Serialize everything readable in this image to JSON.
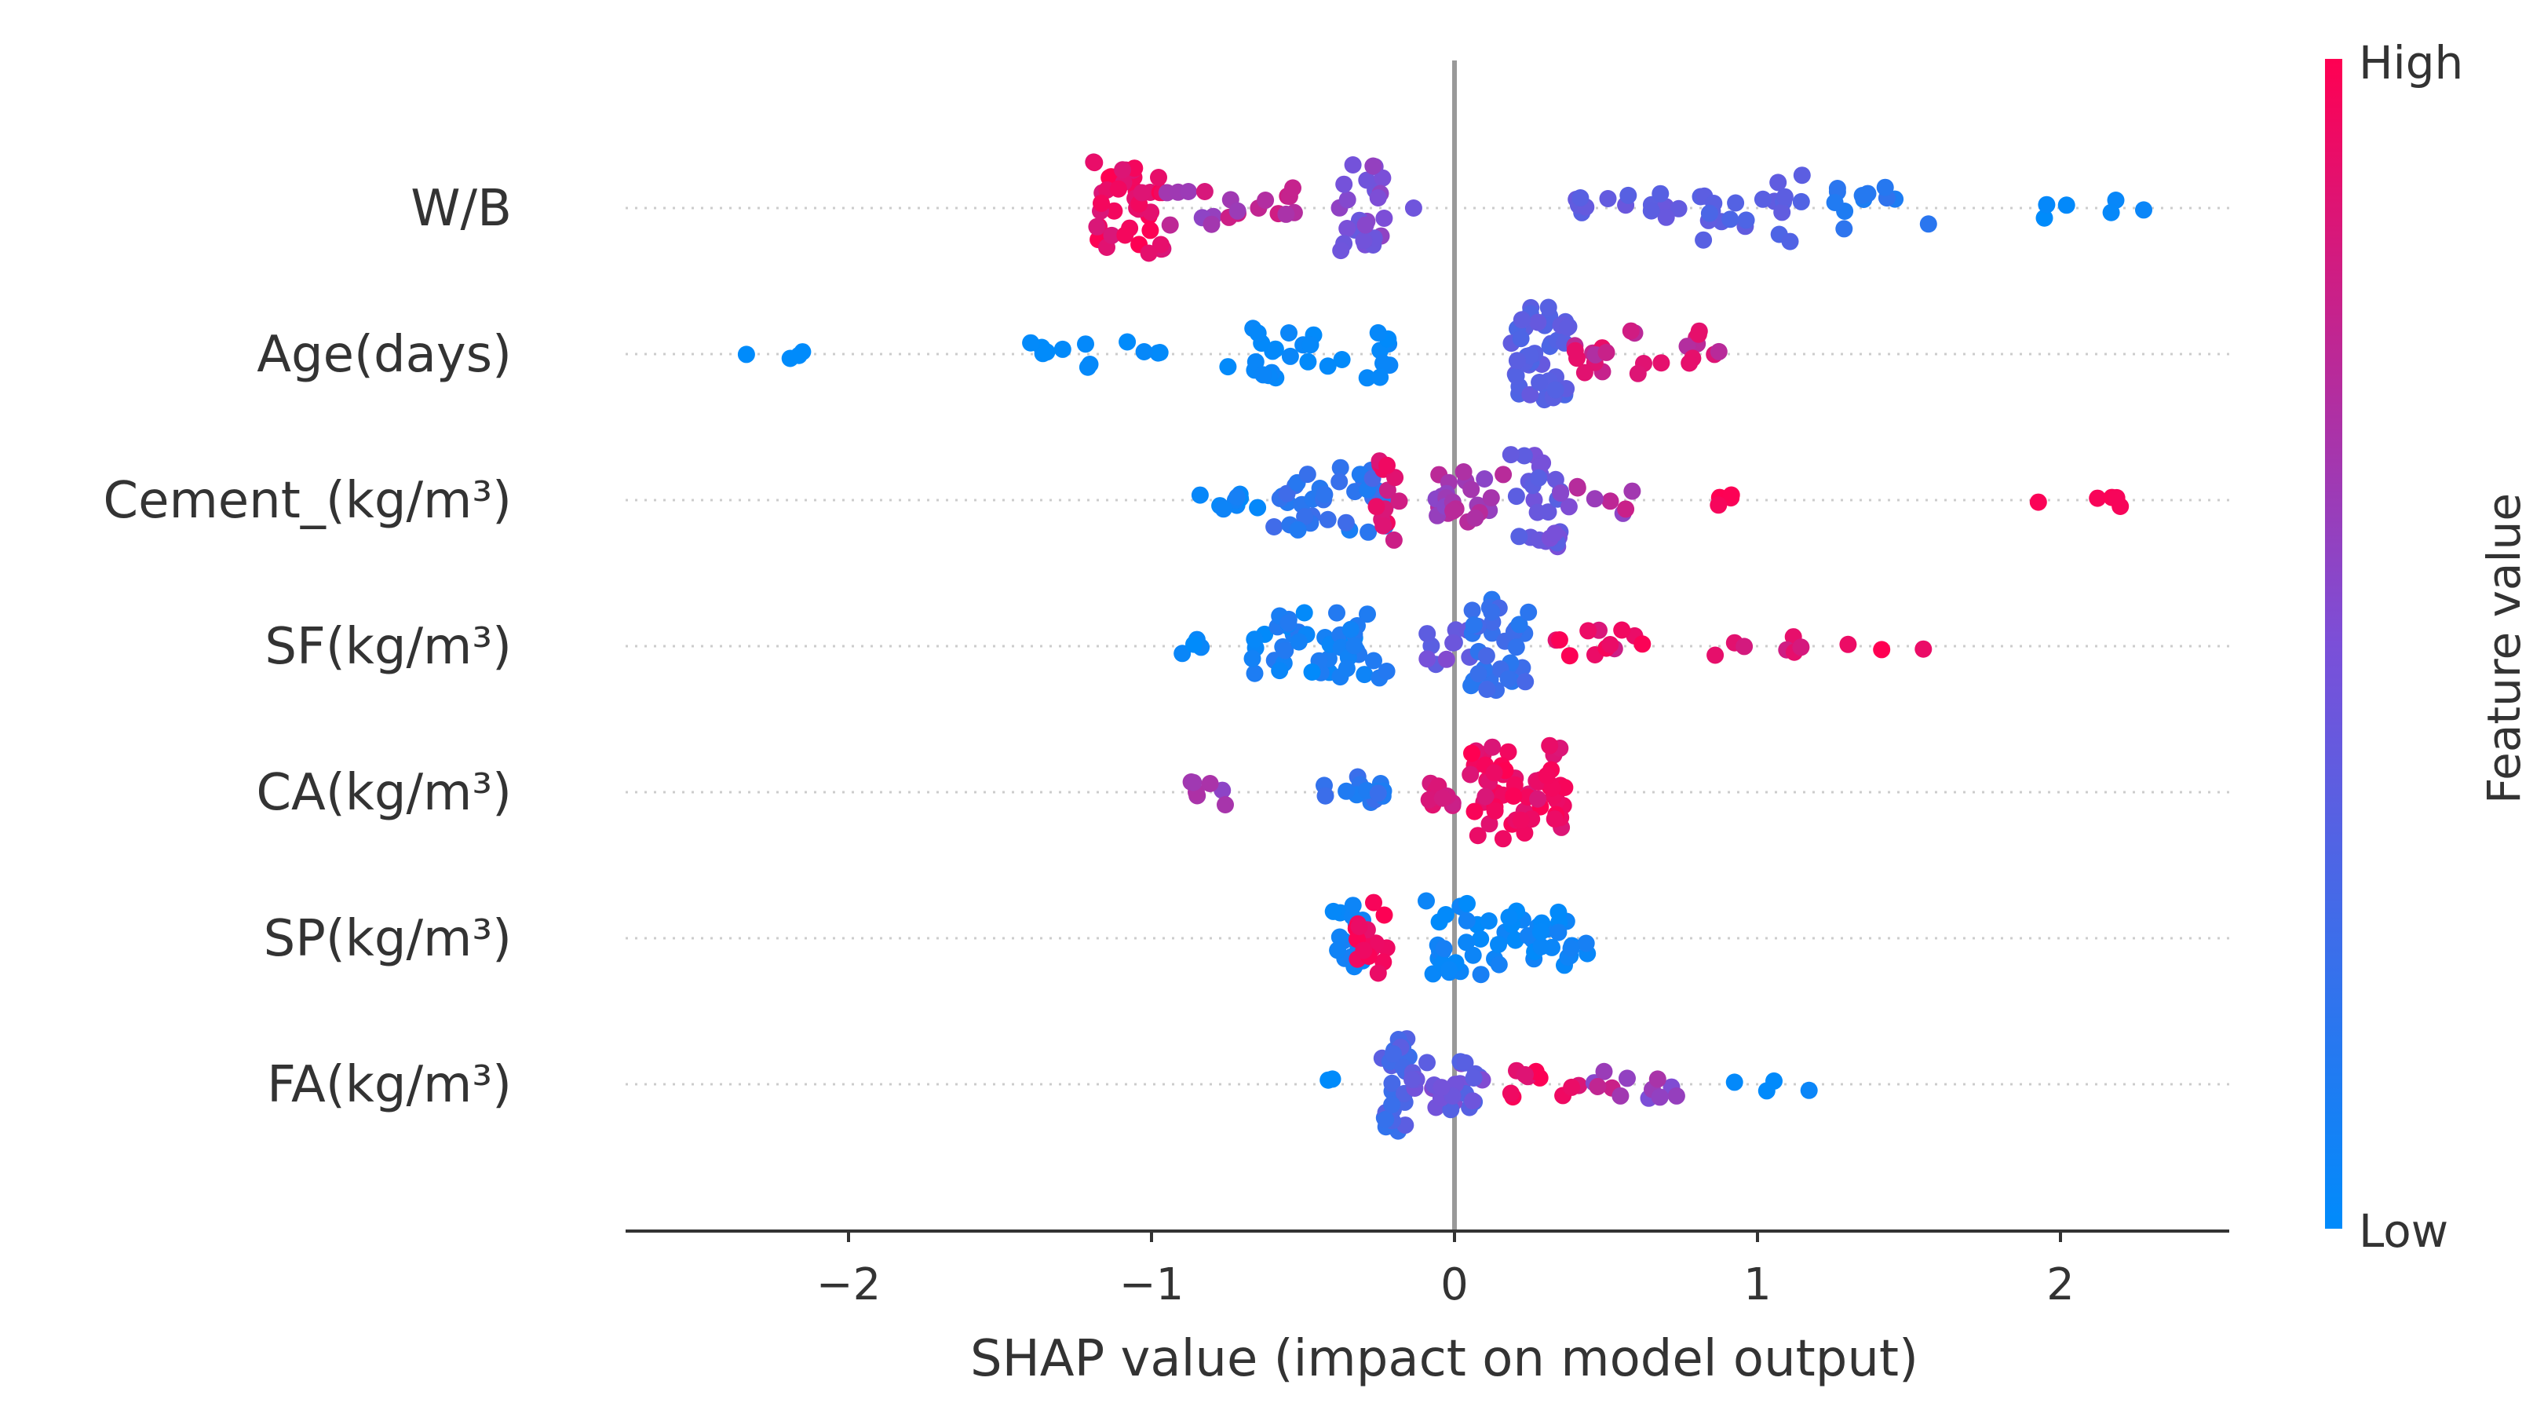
{
  "chart_data": {
    "type": "scatter",
    "xlabel": "SHAP value (impact on model output)",
    "x_ticks": [
      -2,
      -1,
      0,
      1,
      2
    ],
    "x_tick_labels": [
      "−2",
      "−1",
      "0",
      "1",
      "2"
    ],
    "xlim": [
      -2.75,
      2.55
    ],
    "colorbar": {
      "label": "Feature value",
      "high_label": "High",
      "low_label": "Low",
      "low_color": "#008bfb",
      "mid_color": "#7b4fd8",
      "high_color": "#ff0052"
    },
    "zero_line_color": "#999999",
    "features": [
      {
        "label": "W/B",
        "clusters": [
          {
            "from": -1.2,
            "to": -0.95,
            "n": 42,
            "c": [
              0.85,
              1.0
            ],
            "spread": 1.0
          },
          {
            "from": -0.95,
            "to": -0.5,
            "n": 20,
            "c": [
              0.55,
              0.85
            ],
            "spread": 0.45
          },
          {
            "from": -0.38,
            "to": -0.22,
            "n": 24,
            "c": [
              0.4,
              0.6
            ],
            "spread": 1.0
          },
          {
            "from": -0.15,
            "to": -0.12,
            "n": 1,
            "c": [
              0.45,
              0.45
            ],
            "spread": 0.0
          },
          {
            "from": 0.4,
            "to": 0.8,
            "n": 14,
            "c": [
              0.35,
              0.45
            ],
            "spread": 0.35
          },
          {
            "from": 0.8,
            "to": 1.15,
            "n": 22,
            "c": [
              0.3,
              0.4
            ],
            "spread": 0.75
          },
          {
            "from": 1.15,
            "to": 1.6,
            "n": 12,
            "c": [
              0.1,
              0.2
            ],
            "spread": 0.45
          },
          {
            "from": 1.85,
            "to": 2.28,
            "n": 6,
            "c": [
              0.0,
              0.05
            ],
            "spread": 0.25
          }
        ]
      },
      {
        "label": "Age(days)",
        "clusters": [
          {
            "from": -2.55,
            "to": -1.95,
            "n": 4,
            "c": [
              0.0,
              0.0
            ],
            "spread": 0.1
          },
          {
            "from": -1.4,
            "to": -0.9,
            "n": 12,
            "c": [
              0.0,
              0.03
            ],
            "spread": 0.3
          },
          {
            "from": -0.78,
            "to": -0.2,
            "n": 28,
            "c": [
              0.0,
              0.05
            ],
            "spread": 0.55
          },
          {
            "from": 0.18,
            "to": 0.38,
            "n": 46,
            "c": [
              0.3,
              0.42
            ],
            "spread": 1.0
          },
          {
            "from": 0.38,
            "to": 0.9,
            "n": 24,
            "c": [
              0.7,
              0.95
            ],
            "spread": 0.5
          }
        ]
      },
      {
        "label": "Cement_(kg/m³)",
        "clusters": [
          {
            "from": -0.9,
            "to": -0.6,
            "n": 10,
            "c": [
              0.0,
              0.1
            ],
            "spread": 0.2
          },
          {
            "from": -0.6,
            "to": -0.22,
            "n": 34,
            "c": [
              0.1,
              0.3
            ],
            "spread": 0.7
          },
          {
            "from": -0.28,
            "to": -0.15,
            "n": 14,
            "c": [
              0.8,
              0.95
            ],
            "spread": 0.9
          },
          {
            "from": -0.12,
            "to": 0.18,
            "n": 24,
            "c": [
              0.55,
              0.75
            ],
            "spread": 0.6
          },
          {
            "from": 0.18,
            "to": 0.35,
            "n": 26,
            "c": [
              0.35,
              0.5
            ],
            "spread": 1.0
          },
          {
            "from": 0.35,
            "to": 0.6,
            "n": 9,
            "c": [
              0.5,
              0.8
            ],
            "spread": 0.3
          },
          {
            "from": 0.87,
            "to": 0.92,
            "n": 4,
            "c": [
              0.95,
              1.0
            ],
            "spread": 0.15
          },
          {
            "from": 1.9,
            "to": 2.23,
            "n": 5,
            "c": [
              0.95,
              1.0
            ],
            "spread": 0.15
          }
        ]
      },
      {
        "label": "SF(kg/m³)",
        "clusters": [
          {
            "from": -0.9,
            "to": -0.82,
            "n": 4,
            "c": [
              0.0,
              0.05
            ],
            "spread": 0.2
          },
          {
            "from": -0.68,
            "to": -0.22,
            "n": 46,
            "c": [
              0.0,
              0.15
            ],
            "spread": 0.8
          },
          {
            "from": -0.1,
            "to": 0.05,
            "n": 10,
            "c": [
              0.35,
              0.55
            ],
            "spread": 0.4
          },
          {
            "from": 0.05,
            "to": 0.25,
            "n": 34,
            "c": [
              0.15,
              0.3
            ],
            "spread": 1.0
          },
          {
            "from": 0.3,
            "to": 0.62,
            "n": 12,
            "c": [
              0.8,
              1.0
            ],
            "spread": 0.35
          },
          {
            "from": 0.83,
            "to": 1.56,
            "n": 10,
            "c": [
              0.8,
              1.0
            ],
            "spread": 0.2
          }
        ]
      },
      {
        "label": "CA(kg/m³)",
        "clusters": [
          {
            "from": -0.87,
            "to": -0.75,
            "n": 7,
            "c": [
              0.55,
              0.7
            ],
            "spread": 0.3
          },
          {
            "from": -0.43,
            "to": -0.23,
            "n": 14,
            "c": [
              0.1,
              0.25
            ],
            "spread": 0.35
          },
          {
            "from": -0.1,
            "to": 0.05,
            "n": 9,
            "c": [
              0.8,
              0.9
            ],
            "spread": 0.3
          },
          {
            "from": 0.05,
            "to": 0.37,
            "n": 60,
            "c": [
              0.85,
              1.0
            ],
            "spread": 1.0
          }
        ]
      },
      {
        "label": "SP(kg/m³)",
        "clusters": [
          {
            "from": -0.42,
            "to": -0.3,
            "n": 16,
            "c": [
              0.0,
              0.1
            ],
            "spread": 0.7
          },
          {
            "from": -0.33,
            "to": -0.22,
            "n": 16,
            "c": [
              0.9,
              1.0
            ],
            "spread": 0.9
          },
          {
            "from": -0.1,
            "to": 0.1,
            "n": 24,
            "c": [
              0.0,
              0.1
            ],
            "spread": 0.8
          },
          {
            "from": 0.1,
            "to": 0.44,
            "n": 32,
            "c": [
              0.0,
              0.1
            ],
            "spread": 0.6
          }
        ]
      },
      {
        "label": "FA(kg/m³)",
        "clusters": [
          {
            "from": -0.42,
            "to": -0.38,
            "n": 2,
            "c": [
              0.0,
              0.0
            ],
            "spread": 0.2
          },
          {
            "from": -0.24,
            "to": -0.15,
            "n": 28,
            "c": [
              0.2,
              0.4
            ],
            "spread": 1.0
          },
          {
            "from": -0.15,
            "to": 0.1,
            "n": 30,
            "c": [
              0.3,
              0.55
            ],
            "spread": 0.55
          },
          {
            "from": 0.15,
            "to": 0.45,
            "n": 10,
            "c": [
              0.85,
              1.0
            ],
            "spread": 0.3
          },
          {
            "from": 0.45,
            "to": 0.75,
            "n": 12,
            "c": [
              0.5,
              0.8
            ],
            "spread": 0.35
          },
          {
            "from": 0.9,
            "to": 1.22,
            "n": 4,
            "c": [
              0.0,
              0.05
            ],
            "spread": 0.15
          }
        ]
      }
    ]
  }
}
